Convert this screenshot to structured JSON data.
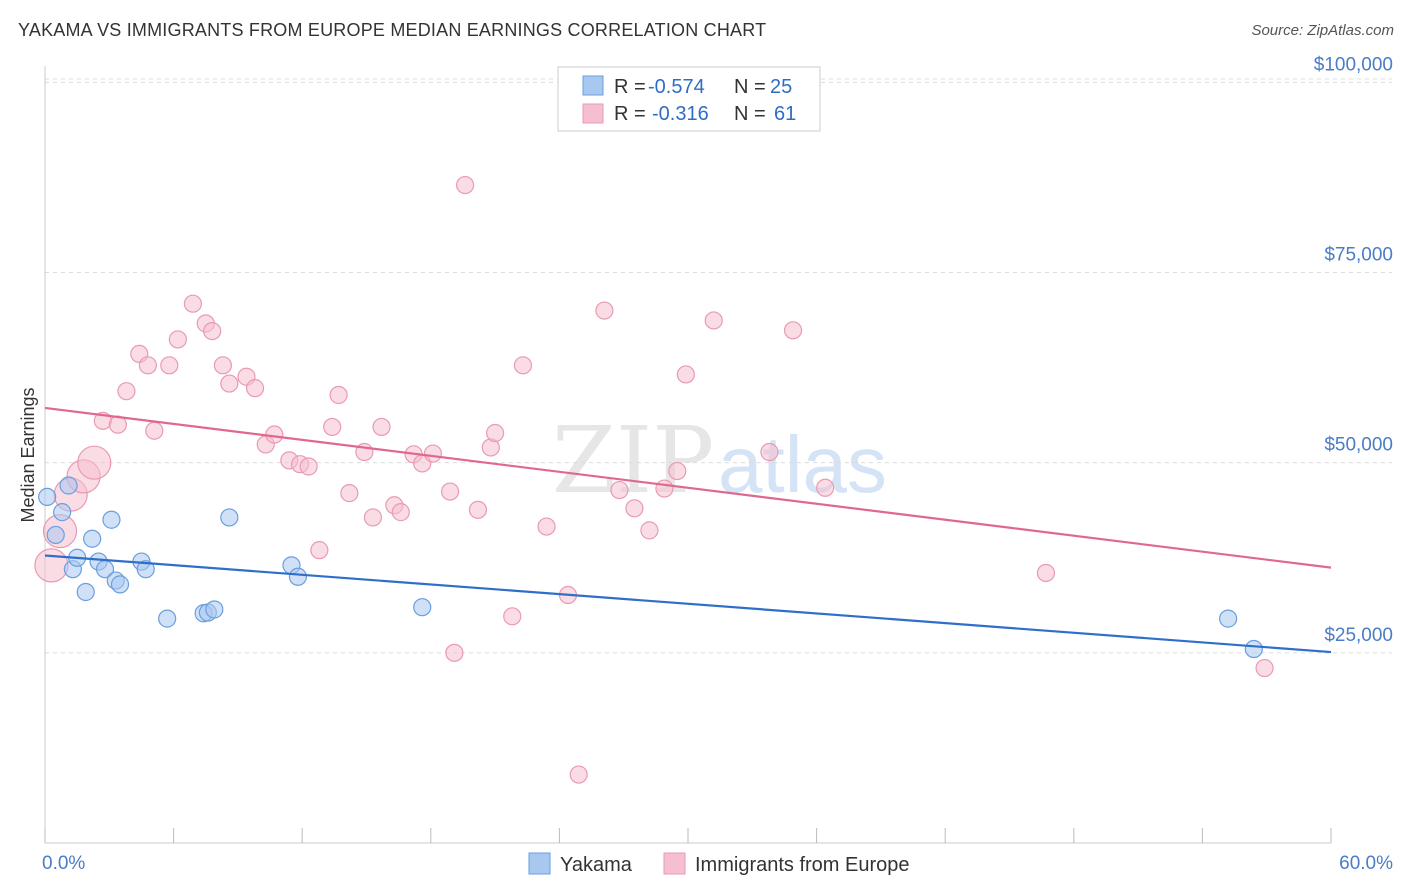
{
  "chart_title": "YAKAMA VS IMMIGRANTS FROM EUROPE MEDIAN EARNINGS CORRELATION CHART",
  "source_text": "Source: ZipAtlas.com",
  "watermark": {
    "zip": "ZIP",
    "atlas": "atlas"
  },
  "colors": {
    "yakama_fill": "#a9c8f0",
    "yakama_stroke": "#6a9ee0",
    "yakama_line": "#2f6fc9",
    "europe_fill": "#f6bfd0",
    "europe_stroke": "#e99ab4",
    "europe_line": "#e0688f",
    "tick_text": "#4a7cc7",
    "grid": "#dcdcdc"
  },
  "stats_legend": {
    "rows": [
      {
        "r_label": "R = ",
        "r_value": "-0.574",
        "n_label": "N = ",
        "n_value": "25"
      },
      {
        "r_label": "R = ",
        "r_value": "-0.316",
        "n_label": "N = ",
        "n_value": "61"
      }
    ]
  },
  "chart_data": {
    "type": "scatter",
    "xlabel": "",
    "ylabel": "Median Earnings",
    "xlim": [
      0,
      60
    ],
    "ylim": [
      0,
      105000
    ],
    "x_tick_labels": [
      "0.0%",
      "60.0%"
    ],
    "y_ticks": [
      25000,
      50000,
      75000,
      100000
    ],
    "y_tick_labels": [
      "$25,000",
      "$50,000",
      "$75,000",
      "$100,000"
    ],
    "grid": true,
    "legend_position": "bottom-center",
    "series": [
      {
        "name": "Yakama",
        "points": [
          [
            0.1,
            45500
          ],
          [
            0.5,
            40500
          ],
          [
            0.8,
            43500
          ],
          [
            1.1,
            47000
          ],
          [
            1.3,
            36000
          ],
          [
            1.5,
            37500
          ],
          [
            1.9,
            33000
          ],
          [
            2.2,
            40000
          ],
          [
            2.5,
            37000
          ],
          [
            2.8,
            36000
          ],
          [
            3.1,
            42500
          ],
          [
            3.3,
            34500
          ],
          [
            3.5,
            34000
          ],
          [
            4.5,
            37000
          ],
          [
            4.7,
            36000
          ],
          [
            5.7,
            29500
          ],
          [
            7.4,
            30200
          ],
          [
            7.6,
            30300
          ],
          [
            7.9,
            30700
          ],
          [
            8.6,
            42800
          ],
          [
            11.5,
            36500
          ],
          [
            11.8,
            35000
          ],
          [
            17.6,
            31000
          ],
          [
            55.2,
            29500
          ],
          [
            56.4,
            25500
          ]
        ],
        "trend": {
          "x": [
            0,
            60
          ],
          "y": [
            37800,
            25100
          ]
        }
      },
      {
        "name": "Immigrants from Europe",
        "points": [
          [
            0.3,
            36500
          ],
          [
            0.7,
            41000
          ],
          [
            1.2,
            45800
          ],
          [
            1.8,
            48200
          ],
          [
            2.3,
            50000
          ],
          [
            2.7,
            55500
          ],
          [
            3.4,
            55000
          ],
          [
            3.8,
            59400
          ],
          [
            4.4,
            64300
          ],
          [
            4.8,
            62800
          ],
          [
            5.1,
            54200
          ],
          [
            5.8,
            62800
          ],
          [
            6.2,
            66200
          ],
          [
            6.9,
            70900
          ],
          [
            7.5,
            68300
          ],
          [
            7.8,
            67300
          ],
          [
            8.3,
            62800
          ],
          [
            8.6,
            60400
          ],
          [
            9.4,
            61300
          ],
          [
            9.8,
            59800
          ],
          [
            10.3,
            52400
          ],
          [
            10.7,
            53700
          ],
          [
            11.4,
            50300
          ],
          [
            11.9,
            49800
          ],
          [
            12.3,
            49500
          ],
          [
            12.8,
            38500
          ],
          [
            13.4,
            54700
          ],
          [
            13.7,
            58900
          ],
          [
            14.2,
            46000
          ],
          [
            14.9,
            51400
          ],
          [
            15.3,
            42800
          ],
          [
            15.7,
            54700
          ],
          [
            16.3,
            44400
          ],
          [
            16.6,
            43500
          ],
          [
            17.2,
            51100
          ],
          [
            17.6,
            49900
          ],
          [
            18.1,
            51200
          ],
          [
            18.9,
            46200
          ],
          [
            19.1,
            25000
          ],
          [
            19.6,
            86500
          ],
          [
            20.2,
            43800
          ],
          [
            20.8,
            52000
          ],
          [
            21.0,
            53900
          ],
          [
            22.3,
            62800
          ],
          [
            23.4,
            41600
          ],
          [
            24.4,
            32600
          ],
          [
            24.9,
            9000
          ],
          [
            26.1,
            70000
          ],
          [
            26.8,
            46400
          ],
          [
            27.5,
            44000
          ],
          [
            28.2,
            41100
          ],
          [
            28.9,
            46600
          ],
          [
            29.5,
            48900
          ],
          [
            29.9,
            61600
          ],
          [
            31.2,
            68700
          ],
          [
            33.8,
            51400
          ],
          [
            34.9,
            67400
          ],
          [
            36.4,
            46700
          ],
          [
            46.7,
            35500
          ],
          [
            56.9,
            23000
          ],
          [
            21.8,
            29800
          ]
        ],
        "trend": {
          "x": [
            0,
            60
          ],
          "y": [
            57200,
            36200
          ]
        }
      }
    ]
  },
  "bottom_legend": {
    "items": [
      {
        "label": "Yakama"
      },
      {
        "label": "Immigrants from Europe"
      }
    ]
  }
}
